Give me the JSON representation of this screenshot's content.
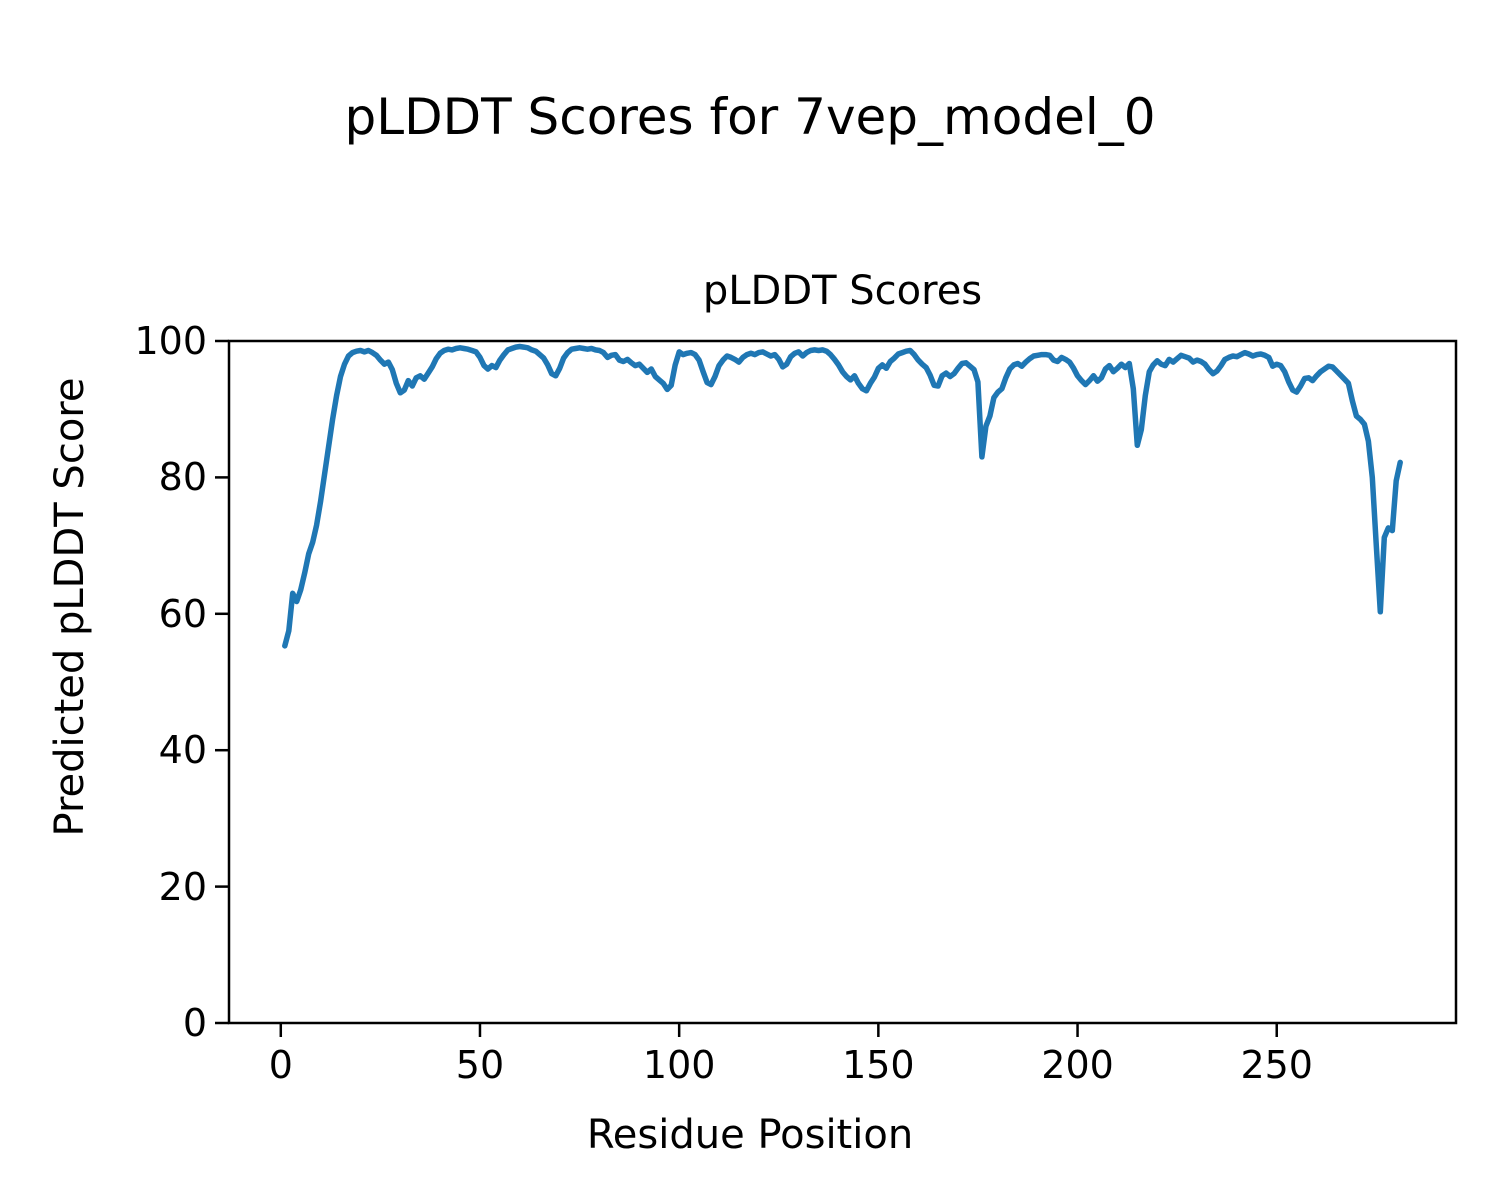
{
  "figure": {
    "suptitle": "pLDDT Scores for 7vep_model_0"
  },
  "chart_data": {
    "type": "line",
    "title": "pLDDT Scores",
    "xlabel": "Residue Position",
    "ylabel": "Predicted pLDDT Score",
    "x_ticks": [
      0,
      50,
      100,
      150,
      200,
      250
    ],
    "y_ticks": [
      0,
      20,
      40,
      60,
      80,
      100
    ],
    "xlim": [
      -13,
      295
    ],
    "ylim": [
      0,
      100
    ],
    "grid": false,
    "legend_position": "none",
    "line_color": "#1f77b4",
    "axis_color": "#000000",
    "series": [
      {
        "name": "pLDDT",
        "x_start": 1,
        "x_step": 1,
        "values": [
          55.3,
          57.5,
          63.0,
          61.8,
          63.5,
          66.0,
          68.8,
          70.5,
          73.0,
          76.5,
          80.5,
          84.5,
          88.5,
          92.0,
          94.8,
          96.6,
          97.8,
          98.3,
          98.5,
          98.6,
          98.4,
          98.6,
          98.3,
          97.9,
          97.2,
          96.6,
          96.9,
          95.8,
          93.8,
          92.4,
          92.8,
          94.2,
          93.4,
          94.6,
          94.9,
          94.4,
          95.3,
          96.2,
          97.4,
          98.2,
          98.6,
          98.8,
          98.7,
          98.9,
          99.0,
          98.9,
          98.8,
          98.6,
          98.4,
          97.6,
          96.4,
          95.9,
          96.4,
          96.1,
          97.2,
          98.0,
          98.7,
          98.9,
          99.1,
          99.2,
          99.1,
          99.0,
          98.7,
          98.5,
          98.0,
          97.5,
          96.5,
          95.2,
          94.9,
          96.0,
          97.5,
          98.3,
          98.8,
          98.9,
          99.0,
          98.9,
          98.8,
          98.9,
          98.7,
          98.6,
          98.3,
          97.6,
          97.9,
          98.0,
          97.2,
          97.0,
          97.3,
          96.8,
          96.4,
          96.6,
          96.0,
          95.4,
          95.9,
          94.8,
          94.3,
          93.8,
          92.9,
          93.5,
          96.5,
          98.4,
          98.0,
          98.2,
          98.3,
          98.0,
          97.2,
          95.5,
          93.9,
          93.6,
          94.8,
          96.4,
          97.2,
          97.8,
          97.6,
          97.3,
          96.9,
          97.6,
          98.0,
          98.2,
          98.0,
          98.3,
          98.4,
          98.1,
          97.8,
          98.0,
          97.3,
          96.2,
          96.6,
          97.7,
          98.2,
          98.4,
          97.8,
          98.3,
          98.6,
          98.7,
          98.6,
          98.7,
          98.5,
          98.0,
          97.3,
          96.5,
          95.5,
          94.8,
          94.3,
          94.9,
          93.8,
          93.0,
          92.7,
          93.8,
          94.7,
          96.0,
          96.5,
          96.0,
          97.0,
          97.5,
          98.1,
          98.3,
          98.5,
          98.6,
          98.0,
          97.2,
          96.6,
          96.1,
          95.0,
          93.5,
          93.4,
          94.9,
          95.3,
          94.8,
          95.2,
          96.0,
          96.7,
          96.8,
          96.3,
          95.8,
          94.0,
          83.0,
          87.5,
          89.0,
          91.7,
          92.5,
          93.0,
          94.6,
          95.9,
          96.5,
          96.7,
          96.3,
          96.9,
          97.4,
          97.8,
          97.9,
          98.0,
          98.0,
          97.9,
          97.2,
          97.0,
          97.6,
          97.3,
          96.9,
          96.0,
          94.9,
          94.2,
          93.6,
          94.2,
          94.9,
          94.1,
          94.6,
          95.9,
          96.4,
          95.5,
          96.0,
          96.6,
          96.1,
          96.7,
          93.0,
          84.7,
          87.0,
          92.0,
          95.5,
          96.5,
          97.1,
          96.6,
          96.4,
          97.3,
          96.9,
          97.4,
          97.9,
          97.7,
          97.5,
          96.9,
          97.2,
          97.0,
          96.6,
          95.8,
          95.2,
          95.6,
          96.4,
          97.3,
          97.6,
          97.8,
          97.7,
          98.0,
          98.3,
          98.1,
          97.8,
          98.0,
          98.1,
          97.9,
          97.6,
          96.3,
          96.6,
          96.4,
          95.5,
          94.0,
          92.8,
          92.5,
          93.4,
          94.5,
          94.6,
          94.2,
          94.9,
          95.5,
          95.9,
          96.3,
          96.2,
          95.6,
          95.0,
          94.4,
          93.8,
          91.2,
          89.0,
          88.5,
          87.8,
          85.3,
          80.0,
          70.0,
          60.3,
          71.2,
          72.6,
          72.2,
          79.5,
          82.2
        ]
      }
    ]
  }
}
